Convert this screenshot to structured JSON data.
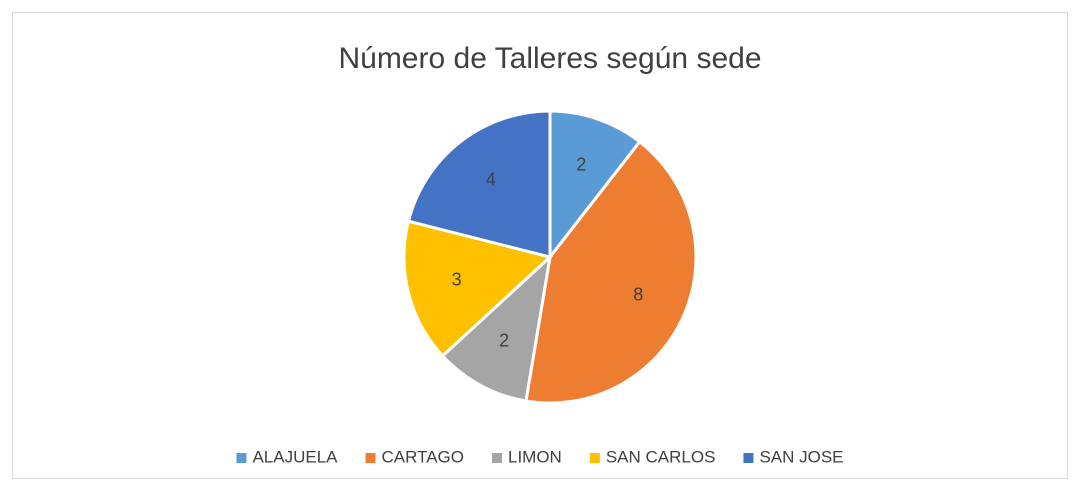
{
  "chart_data": {
    "type": "pie",
    "title": "Número de Talleres según sede",
    "categories": [
      "ALAJUELA",
      "CARTAGO",
      "LIMON",
      "SAN CARLOS",
      "SAN JOSE"
    ],
    "values": [
      2,
      8,
      2,
      3,
      4
    ],
    "colors": [
      "#5b9bd5",
      "#ed7d31",
      "#a5a5a5",
      "#ffc000",
      "#4472c4"
    ],
    "legend": "bottom"
  }
}
